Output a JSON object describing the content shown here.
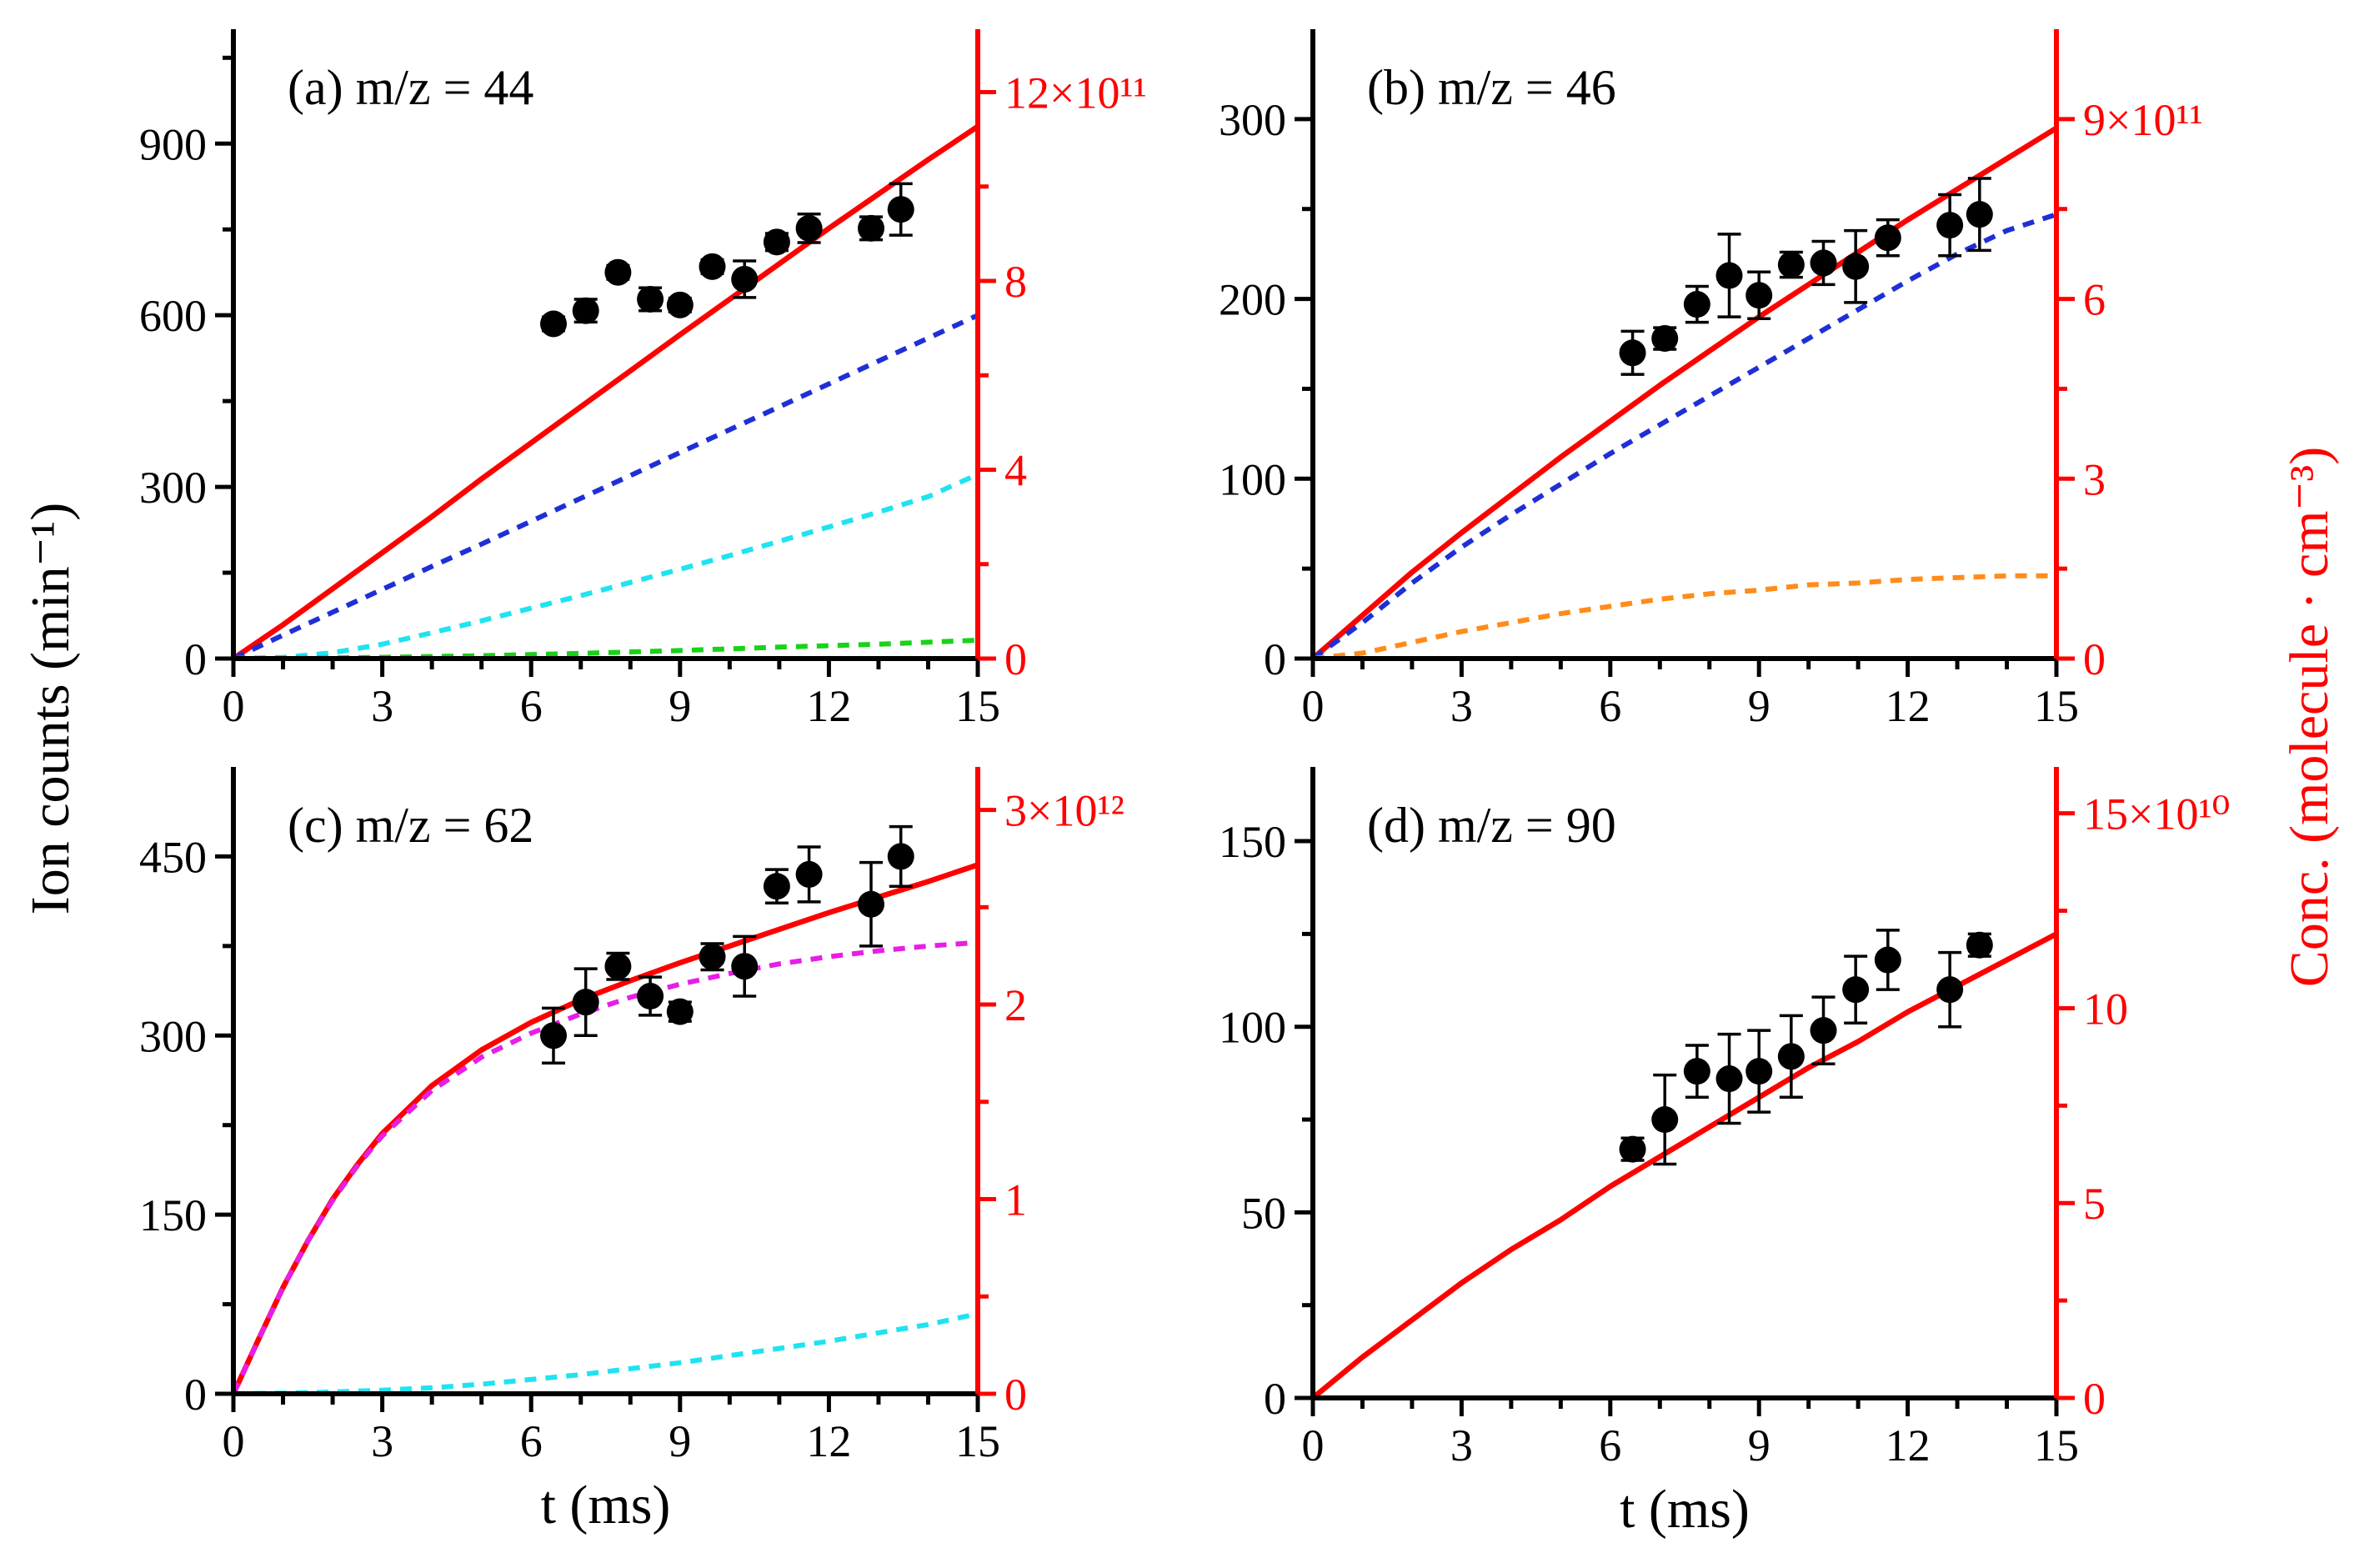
{
  "chart_data": {
    "type": "scatter",
    "left_axis_title": "Ion counts (min⁻¹)",
    "right_axis_title": "Conc. (molecule · cm⁻³)",
    "colors": {
      "points": "#000000",
      "total_model": "#ff0000",
      "right_axis": "#ff0000",
      "blue": "#1f2fd6",
      "cyan": "#1fe3f0",
      "green": "#19d219",
      "orange": "#ff8c1a",
      "magenta": "#e61ee6"
    },
    "panels": [
      {
        "id": "a",
        "label": "(a) m/z = 44",
        "xlabel": "",
        "xlim": [
          0,
          15
        ],
        "xticks": [
          "0",
          "3",
          "6",
          "9",
          "12",
          "15"
        ],
        "ylim": [
          0,
          1100
        ],
        "yticks": [
          {
            "v": 0,
            "t": "0"
          },
          {
            "v": 300,
            "t": "300"
          },
          {
            "v": 600,
            "t": "600"
          },
          {
            "v": 900,
            "t": "900"
          }
        ],
        "yminor": [
          150,
          450,
          750,
          1050
        ],
        "right_ticks": [
          {
            "v": 0,
            "t": "0"
          },
          {
            "v": 330,
            "t": "4"
          },
          {
            "v": 660,
            "t": "8"
          },
          {
            "v": 990,
            "t": "12×10¹¹"
          }
        ],
        "right_minor": [
          165,
          495,
          825
        ],
        "points": [
          {
            "x": 6.45,
            "y": 585,
            "e": 12
          },
          {
            "x": 7.1,
            "y": 608,
            "e": 20
          },
          {
            "x": 7.75,
            "y": 675,
            "e": 12
          },
          {
            "x": 8.4,
            "y": 628,
            "e": 20
          },
          {
            "x": 9.0,
            "y": 618,
            "e": 12
          },
          {
            "x": 9.65,
            "y": 685,
            "e": 12
          },
          {
            "x": 10.3,
            "y": 663,
            "e": 32
          },
          {
            "x": 10.95,
            "y": 728,
            "e": 15
          },
          {
            "x": 11.6,
            "y": 752,
            "e": 25
          },
          {
            "x": 12.85,
            "y": 752,
            "e": 20
          },
          {
            "x": 13.45,
            "y": 785,
            "e": 45
          }
        ],
        "curves": [
          {
            "name": "total",
            "color": "#ff0000",
            "dashed": false,
            "x": [
              0,
              1,
              2,
              3,
              4,
              5,
              6,
              7,
              8,
              9,
              10,
              11,
              12,
              13,
              14,
              15
            ],
            "y": [
              0,
              59,
              122,
              185,
              248,
              314,
              377,
              440,
              503,
              566,
              628,
              690,
              752,
              812,
              872,
              930
            ]
          },
          {
            "name": "blue",
            "color": "#1f2fd6",
            "dashed": true,
            "x": [
              0,
              1,
              2,
              3,
              4,
              5,
              6,
              7,
              8,
              9,
              10,
              11,
              12,
              13,
              14,
              15
            ],
            "y": [
              0,
              41,
              81,
              121,
              161,
              200,
              240,
              280,
              320,
              360,
              400,
              440,
              480,
              520,
              560,
              600
            ]
          },
          {
            "name": "cyan",
            "color": "#1fe3f0",
            "dashed": true,
            "x": [
              0,
              1,
              2,
              3,
              4,
              5,
              6,
              7,
              8,
              9,
              10,
              11,
              12,
              13,
              14,
              15
            ],
            "y": [
              0,
              2,
              10,
              25,
              45,
              66,
              88,
              110,
              133,
              156,
              180,
              205,
              230,
              256,
              283,
              322
            ]
          },
          {
            "name": "green",
            "color": "#19d219",
            "dashed": true,
            "x": [
              0,
              1,
              3,
              5,
              7,
              9,
              11,
              13,
              15
            ],
            "y": [
              0,
              0.5,
              2,
              5,
              9,
              14,
              20,
              25,
              32
            ]
          }
        ]
      },
      {
        "id": "b",
        "label": "(b) m/z = 46",
        "xlabel": "",
        "xlim": [
          0,
          15
        ],
        "xticks": [
          "0",
          "3",
          "6",
          "9",
          "12",
          "15"
        ],
        "ylim": [
          0,
          350
        ],
        "yticks": [
          {
            "v": 0,
            "t": "0"
          },
          {
            "v": 100,
            "t": "100"
          },
          {
            "v": 200,
            "t": "200"
          },
          {
            "v": 300,
            "t": "300"
          }
        ],
        "yminor": [
          50,
          150,
          250
        ],
        "right_ticks": [
          {
            "v": 0,
            "t": "0"
          },
          {
            "v": 100,
            "t": "3"
          },
          {
            "v": 200,
            "t": "6"
          },
          {
            "v": 300,
            "t": "9×10¹¹"
          }
        ],
        "right_minor": [
          50,
          150,
          250
        ],
        "points": [
          {
            "x": 6.45,
            "y": 170,
            "e": 12
          },
          {
            "x": 7.1,
            "y": 178,
            "e": 6
          },
          {
            "x": 7.75,
            "y": 197,
            "e": 10
          },
          {
            "x": 8.4,
            "y": 213,
            "e": 23
          },
          {
            "x": 9.0,
            "y": 202,
            "e": 13
          },
          {
            "x": 9.65,
            "y": 219,
            "e": 7
          },
          {
            "x": 10.3,
            "y": 220,
            "e": 12
          },
          {
            "x": 10.95,
            "y": 218,
            "e": 20
          },
          {
            "x": 11.6,
            "y": 234,
            "e": 10
          },
          {
            "x": 12.85,
            "y": 241,
            "e": 17
          },
          {
            "x": 13.45,
            "y": 247,
            "e": 20
          }
        ],
        "curves": [
          {
            "name": "total",
            "color": "#ff0000",
            "dashed": false,
            "x": [
              0,
              1,
              2,
              3,
              4,
              5,
              6,
              7,
              8,
              9,
              10,
              11,
              12,
              13,
              14,
              15
            ],
            "y": [
              0,
              24,
              48,
              70,
              91,
              112,
              132,
              152,
              171,
              190,
              208,
              226,
              244,
              261,
              278,
              295
            ]
          },
          {
            "name": "blue",
            "color": "#1f2fd6",
            "dashed": true,
            "x": [
              0,
              1,
              2,
              3,
              4,
              5,
              6,
              7,
              8,
              9,
              10,
              11,
              12,
              13,
              14,
              15
            ],
            "y": [
              0,
              20,
              42,
              62,
              80,
              97,
              114,
              130,
              146,
              162,
              178,
              194,
              210,
              225,
              238,
              247
            ]
          },
          {
            "name": "orange",
            "color": "#ff8c1a",
            "dashed": true,
            "x": [
              0,
              1,
              2,
              3,
              4,
              5,
              6,
              7,
              8,
              9,
              10,
              11,
              12,
              13,
              14,
              15
            ],
            "y": [
              0,
              3,
              9,
              15,
              20,
              25,
              29,
              33,
              36,
              38,
              41,
              42,
              44,
              45,
              46,
              46
            ]
          }
        ]
      },
      {
        "id": "c",
        "label": "(c) m/z = 62",
        "xlabel": "t (ms)",
        "xlim": [
          0,
          15
        ],
        "xticks": [
          "0",
          "3",
          "6",
          "9",
          "12",
          "15"
        ],
        "ylim": [
          0,
          525
        ],
        "yticks": [
          {
            "v": 0,
            "t": "0"
          },
          {
            "v": 150,
            "t": "150"
          },
          {
            "v": 300,
            "t": "300"
          },
          {
            "v": 450,
            "t": "450"
          }
        ],
        "yminor": [
          75,
          225,
          375
        ],
        "right_ticks": [
          {
            "v": 0,
            "t": "0"
          },
          {
            "v": 163,
            "t": "1"
          },
          {
            "v": 326,
            "t": "2"
          },
          {
            "v": 489,
            "t": "3×10¹²"
          }
        ],
        "right_minor": [
          81.5,
          244.5,
          407.5
        ],
        "points": [
          {
            "x": 6.45,
            "y": 300,
            "e": 23
          },
          {
            "x": 7.1,
            "y": 328,
            "e": 28
          },
          {
            "x": 7.75,
            "y": 358,
            "e": 11
          },
          {
            "x": 8.4,
            "y": 333,
            "e": 16
          },
          {
            "x": 9.0,
            "y": 320,
            "e": 8
          },
          {
            "x": 9.65,
            "y": 366,
            "e": 11
          },
          {
            "x": 10.3,
            "y": 358,
            "e": 25
          },
          {
            "x": 10.95,
            "y": 425,
            "e": 14
          },
          {
            "x": 11.6,
            "y": 435,
            "e": 23
          },
          {
            "x": 12.85,
            "y": 410,
            "e": 35
          },
          {
            "x": 13.45,
            "y": 450,
            "e": 25
          }
        ],
        "curves": [
          {
            "name": "total",
            "color": "#ff0000",
            "dashed": false,
            "x": [
              0,
              0.5,
              1,
              1.5,
              2,
              2.5,
              3,
              4,
              5,
              6,
              7,
              8,
              9,
              10,
              11,
              12,
              13,
              14,
              15
            ],
            "y": [
              0,
              45,
              89,
              128,
              163,
              192,
              218,
              258,
              288,
              311,
              330,
              346,
              361,
              375,
              389,
              403,
              416,
              429,
              443
            ]
          },
          {
            "name": "magenta",
            "color": "#e61ee6",
            "dashed": true,
            "x": [
              0,
              0.5,
              1,
              1.5,
              2,
              2.5,
              3,
              4,
              5,
              6,
              7,
              8,
              9,
              10,
              11,
              12,
              13,
              14,
              15
            ],
            "y": [
              0,
              45,
              89,
              128,
              162,
              191,
              216,
              254,
              282,
              302,
              318,
              332,
              343,
              352,
              360,
              366,
              371,
              375,
              378
            ]
          },
          {
            "name": "cyan",
            "color": "#1fe3f0",
            "dashed": true,
            "x": [
              0,
              1,
              2,
              3,
              4,
              5,
              6,
              7,
              8,
              9,
              10,
              11,
              12,
              13,
              14,
              15
            ],
            "y": [
              0,
              0.5,
              1.5,
              3,
              5,
              8,
              12,
              16,
              21,
              26,
              32,
              38,
              44,
              51,
              58,
              67
            ]
          }
        ]
      },
      {
        "id": "d",
        "label": "(d) m/z = 90",
        "xlabel": "t (ms)",
        "xlim": [
          0,
          15
        ],
        "xticks": [
          "0",
          "3",
          "6",
          "9",
          "12",
          "15"
        ],
        "ylim": [
          0,
          170
        ],
        "yticks": [
          {
            "v": 0,
            "t": "0"
          },
          {
            "v": 50,
            "t": "50"
          },
          {
            "v": 100,
            "t": "100"
          },
          {
            "v": 150,
            "t": "150"
          }
        ],
        "yminor": [
          25,
          75,
          125
        ],
        "right_ticks": [
          {
            "v": 0,
            "t": "0"
          },
          {
            "v": 52.5,
            "t": "5"
          },
          {
            "v": 105,
            "t": "10"
          },
          {
            "v": 157.5,
            "t": "15×10¹⁰"
          }
        ],
        "right_minor": [
          26.25,
          78.75,
          131.25
        ],
        "points": [
          {
            "x": 6.45,
            "y": 67,
            "e": 3
          },
          {
            "x": 7.1,
            "y": 75,
            "e": 12
          },
          {
            "x": 7.75,
            "y": 88,
            "e": 7
          },
          {
            "x": 8.4,
            "y": 86,
            "e": 12
          },
          {
            "x": 9.0,
            "y": 88,
            "e": 11
          },
          {
            "x": 9.65,
            "y": 92,
            "e": 11
          },
          {
            "x": 10.3,
            "y": 99,
            "e": 9
          },
          {
            "x": 10.95,
            "y": 110,
            "e": 9
          },
          {
            "x": 11.6,
            "y": 118,
            "e": 8
          },
          {
            "x": 12.85,
            "y": 110,
            "e": 10
          },
          {
            "x": 13.45,
            "y": 122,
            "e": 3
          }
        ],
        "curves": [
          {
            "name": "total",
            "color": "#ff0000",
            "dashed": false,
            "x": [
              0,
              1,
              2,
              3,
              4,
              5,
              6,
              7,
              8,
              9,
              10,
              11,
              12,
              13,
              14,
              15
            ],
            "y": [
              0,
              11,
              21,
              31,
              40,
              48,
              57,
              65,
              73,
              81,
              89,
              96,
              104,
              111,
              118,
              125
            ]
          }
        ]
      }
    ]
  }
}
